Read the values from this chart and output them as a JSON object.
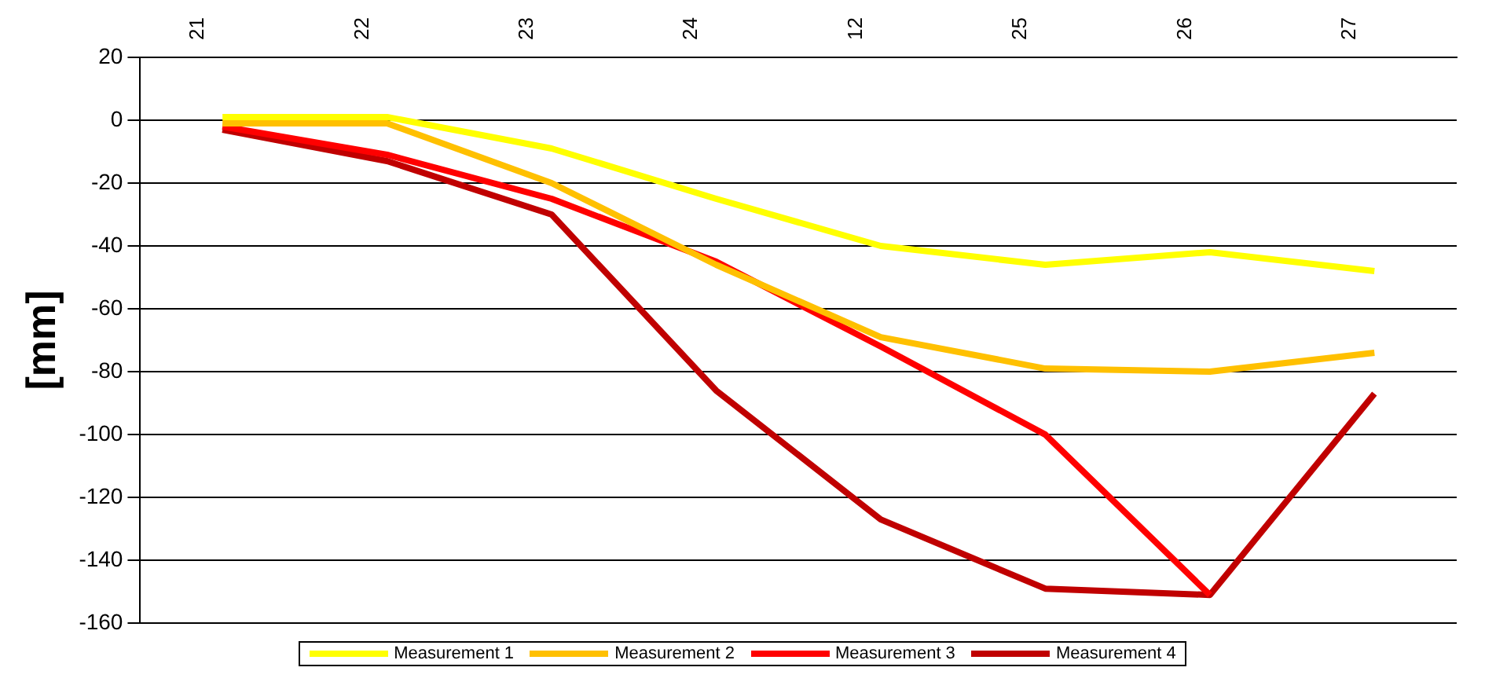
{
  "chart_data": {
    "type": "line",
    "ylabel": "[mm]",
    "categories": [
      "21",
      "22",
      "23",
      "24",
      "12",
      "25",
      "26",
      "27"
    ],
    "series": [
      {
        "name": "Measurement 1",
        "color": "#ffff00",
        "values": [
          1,
          1,
          -9,
          -25,
          -40,
          -46,
          -42,
          -48
        ]
      },
      {
        "name": "Measurement 2",
        "color": "#ffc000",
        "values": [
          -1,
          -1,
          -20,
          -46,
          -69,
          -79,
          -80,
          -74
        ]
      },
      {
        "name": "Measurement 3",
        "color": "#ff0000",
        "values": [
          -2,
          -11,
          -25,
          -45,
          -72,
          -100,
          -151,
          null
        ]
      },
      {
        "name": "Measurement 4",
        "color": "#c00000",
        "values": [
          -3,
          -13,
          -30,
          -86,
          -127,
          -149,
          -151,
          -87
        ]
      }
    ],
    "ylim": [
      -160,
      20
    ],
    "yticks": [
      -160,
      -140,
      -120,
      -100,
      -80,
      -60,
      -40,
      -20,
      0,
      20
    ],
    "grid": "y",
    "legend": "bottom",
    "marker": "none",
    "line_style": "solid"
  }
}
